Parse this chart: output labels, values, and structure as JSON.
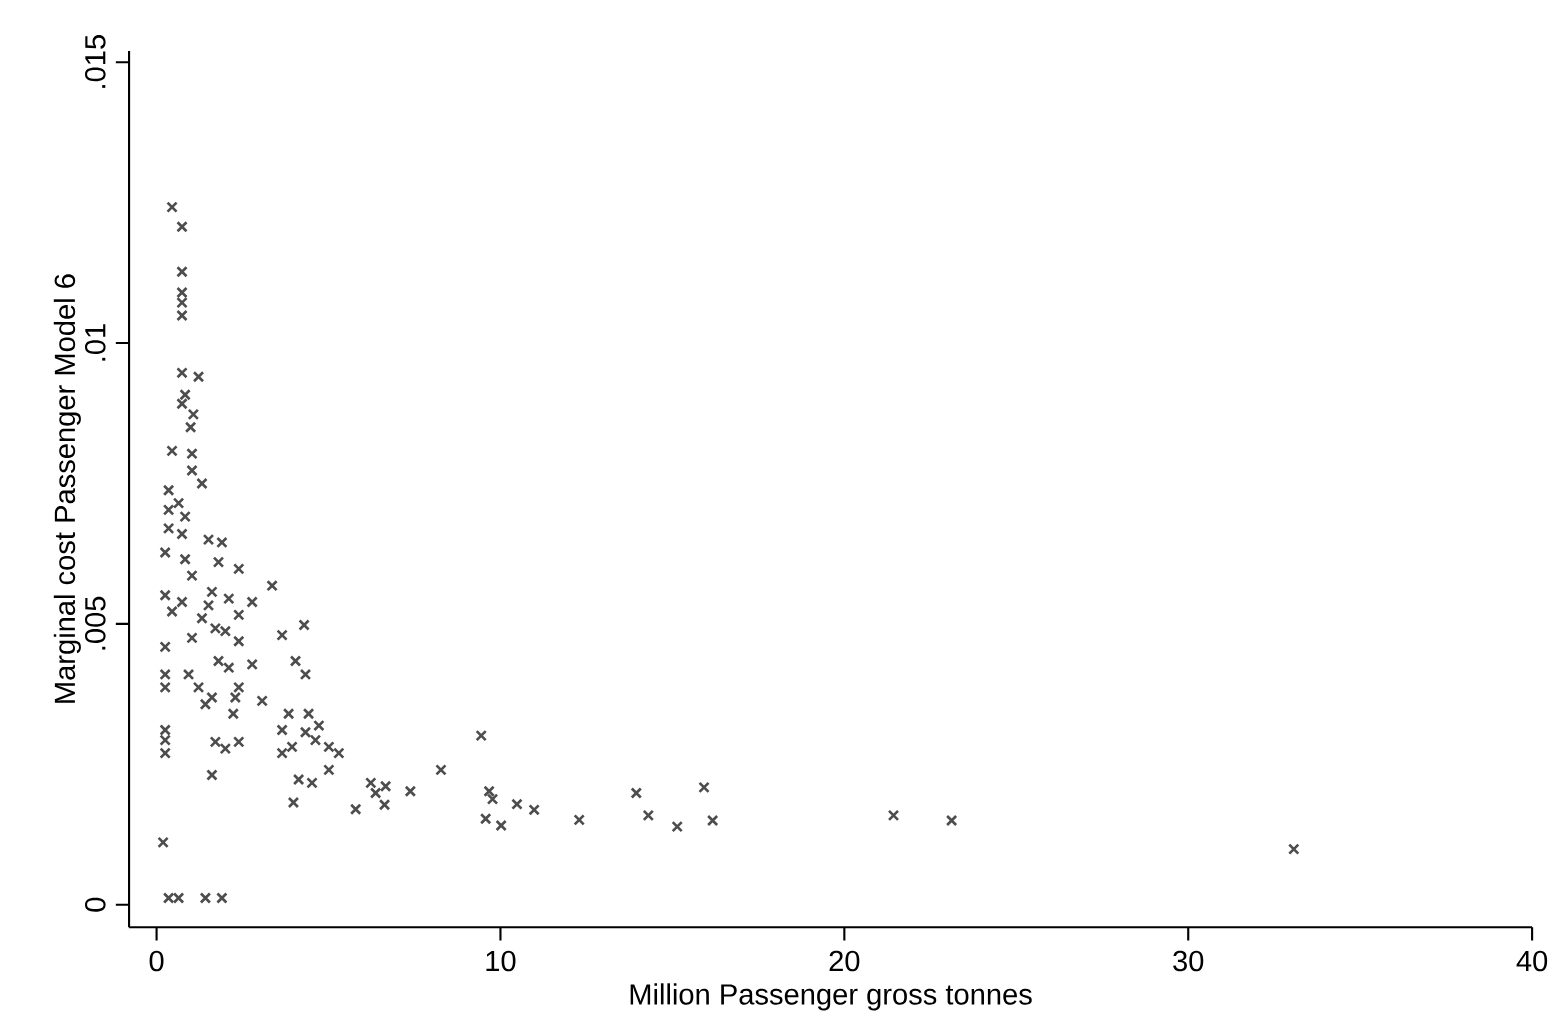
{
  "chart_data": {
    "type": "scatter",
    "xlabel": "Million Passenger gross tonnes",
    "ylabel": "Marginal cost Passenger Model 6",
    "color": "#4d4d4d",
    "marker": "cross",
    "grid": false,
    "xlim": [
      -0.8,
      40
    ],
    "xticks": [
      0,
      10,
      20,
      30,
      40
    ],
    "ylim": [
      -0.0004,
      0.0152
    ],
    "yticks": [
      0,
      {
        "value": 0.005,
        "label": ".005"
      },
      {
        "value": 0.01,
        "label": ".01"
      },
      {
        "value": 0.015,
        "label": ".015"
      }
    ],
    "x": [
      0.45,
      0.74,
      0.74,
      0.74,
      0.74,
      0.74,
      0.74,
      1.22,
      0.83,
      0.74,
      1.07,
      0.99,
      0.45,
      1.03,
      1.03,
      1.32,
      0.35,
      0.64,
      0.35,
      0.83,
      0.35,
      0.74,
      1.51,
      1.9,
      0.25,
      1.8,
      2.39,
      0.83,
      1.03,
      3.36,
      0.25,
      0.74,
      0.45,
      1.61,
      1.51,
      2.1,
      2.78,
      1.32,
      2.39,
      1.71,
      2.0,
      1.03,
      2.39,
      3.65,
      4.29,
      0.25,
      0.25,
      0.25,
      0.93,
      1.8,
      2.1,
      2.78,
      4.04,
      4.33,
      1.22,
      1.61,
      1.42,
      2.39,
      2.29,
      3.07,
      2.23,
      3.84,
      4.42,
      4.72,
      3.65,
      4.33,
      1.71,
      2.39,
      2.0,
      0.25,
      0.25,
      0.25,
      3.94,
      3.65,
      4.62,
      5.01,
      5.3,
      5.01,
      1.61,
      4.13,
      4.52,
      6.23,
      6.66,
      6.37,
      7.38,
      8.27,
      9.44,
      9.67,
      9.77,
      3.98,
      5.79,
      6.63,
      9.57,
      10.02,
      0.19,
      0.35,
      0.64,
      1.42,
      1.9,
      10.48,
      10.98,
      12.29,
      13.95,
      14.3,
      15.14,
      15.92,
      16.17,
      21.43,
      23.12,
      33.07
    ],
    "values": [
      0.01242,
      0.01207,
      0.01127,
      0.0109,
      0.01072,
      0.01049,
      0.00947,
      0.0094,
      0.00908,
      0.00892,
      0.00873,
      0.0085,
      0.00808,
      0.00803,
      0.00773,
      0.0075,
      0.00738,
      0.00715,
      0.00703,
      0.00691,
      0.0067,
      0.0066,
      0.0065,
      0.00645,
      0.00627,
      0.0061,
      0.00598,
      0.00615,
      0.00586,
      0.00568,
      0.00551,
      0.00539,
      0.00522,
      0.00557,
      0.00533,
      0.00545,
      0.00539,
      0.0051,
      0.00516,
      0.00492,
      0.00487,
      0.00475,
      0.00469,
      0.0048,
      0.00498,
      0.00459,
      0.0041,
      0.00387,
      0.0041,
      0.00434,
      0.00422,
      0.00428,
      0.00434,
      0.0041,
      0.00387,
      0.00369,
      0.00357,
      0.00387,
      0.00369,
      0.00363,
      0.0034,
      0.0034,
      0.0034,
      0.00319,
      0.00311,
      0.00307,
      0.0029,
      0.0029,
      0.00278,
      0.00311,
      0.00293,
      0.0027,
      0.00281,
      0.0027,
      0.00293,
      0.00281,
      0.0027,
      0.0024,
      0.00231,
      0.00223,
      0.00217,
      0.00217,
      0.00211,
      0.00199,
      0.00202,
      0.0024,
      0.00301,
      0.00202,
      0.00188,
      0.00182,
      0.0017,
      0.00178,
      0.00153,
      0.00141,
      0.00111,
      0.00012,
      0.00012,
      0.00012,
      0.00012,
      0.00179,
      0.00169,
      0.00151,
      0.00199,
      0.00159,
      0.00139,
      0.00209,
      0.0015,
      0.00159,
      0.0015,
      0.00099
    ]
  }
}
